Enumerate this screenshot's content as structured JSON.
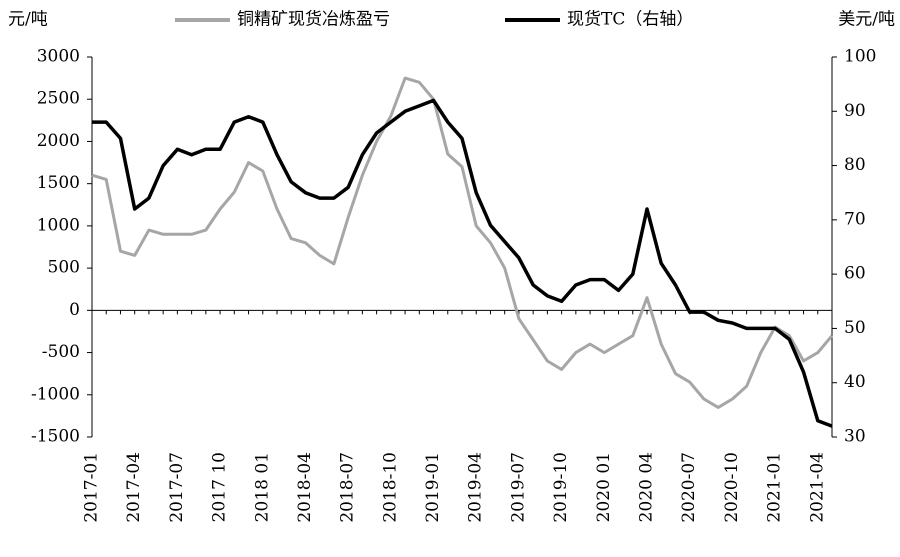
{
  "chart_data": {
    "type": "line",
    "y_label": "元/吨",
    "y2_label": "美元/吨",
    "categories": [
      "2017-01",
      null,
      null,
      "2017-04",
      null,
      null,
      "2017-07",
      null,
      null,
      "2017 10",
      null,
      null,
      "2018 01",
      null,
      null,
      "2018-04",
      null,
      null,
      "2018-07",
      null,
      null,
      "2018-10",
      null,
      null,
      "2019-01",
      null,
      null,
      "2019-04",
      null,
      null,
      "2019-07",
      null,
      null,
      "2019-10",
      null,
      null,
      "2020 01",
      null,
      null,
      "2020 04",
      null,
      null,
      "2020-07",
      null,
      null,
      "2020-10",
      null,
      null,
      "2021-01",
      null,
      null,
      "2021-04",
      null
    ],
    "series": [
      {
        "name": "铜精矿现货冶炼盈亏",
        "color": "#a6a6a6",
        "axis": "y",
        "values": [
          1600,
          1550,
          700,
          650,
          950,
          900,
          900,
          900,
          950,
          1200,
          1400,
          1750,
          1650,
          1200,
          850,
          800,
          650,
          550,
          1100,
          1600,
          2000,
          2300,
          2750,
          2700,
          2500,
          1850,
          1700,
          1000,
          800,
          500,
          -100,
          -350,
          -600,
          -700,
          -500,
          -400,
          -500,
          -400,
          -300,
          150,
          -400,
          -750,
          -850,
          -1050,
          -1150,
          -1050,
          -900,
          -500,
          -200,
          -300,
          -600,
          -500,
          -300
        ]
      },
      {
        "name": "现货TC（右轴）",
        "color": "#000000",
        "axis": "y2",
        "values": [
          88,
          88,
          85,
          72,
          74,
          80,
          83,
          82,
          83,
          83,
          88,
          89,
          88,
          82,
          77,
          75,
          74,
          74,
          76,
          82,
          86,
          88,
          90,
          91,
          92,
          88,
          85,
          75,
          69,
          66,
          63,
          58,
          56,
          55,
          58,
          59,
          59,
          57,
          60,
          72,
          62,
          58,
          53,
          53,
          51.5,
          51,
          50,
          50,
          50,
          48,
          42,
          33,
          32
        ]
      }
    ],
    "ylim": [
      -1500,
      3000
    ],
    "yticks": [
      -1500,
      -1000,
      -500,
      0,
      500,
      1000,
      1500,
      2000,
      2500,
      3000
    ],
    "y2lim": [
      30,
      100
    ],
    "y2ticks": [
      30,
      40,
      50,
      60,
      70,
      80,
      90,
      100
    ]
  }
}
